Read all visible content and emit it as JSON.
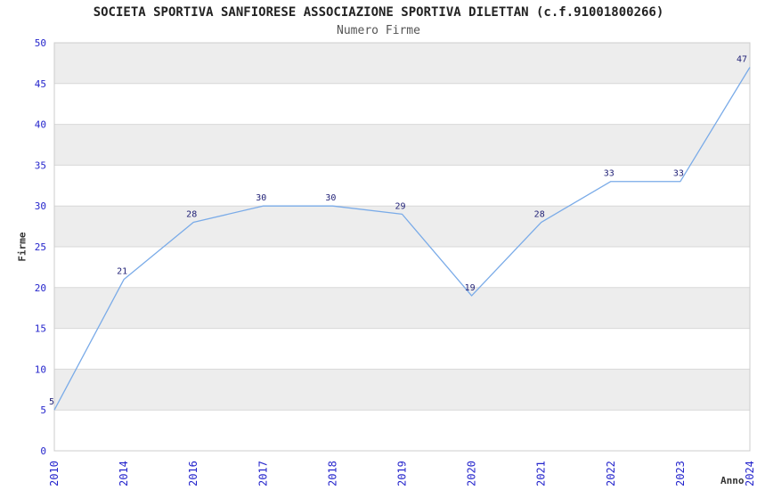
{
  "chart_data": {
    "type": "line",
    "title": "SOCIETA SPORTIVA SANFIORESE ASSOCIAZIONE SPORTIVA DILETTAN (c.f.91001800266)",
    "subtitle": "Numero Firme",
    "xlabel": "Anno",
    "ylabel": "Firme",
    "categories": [
      "2010",
      "2014",
      "2016",
      "2017",
      "2018",
      "2019",
      "2020",
      "2021",
      "2022",
      "2023",
      "2024"
    ],
    "values": [
      5,
      21,
      28,
      30,
      30,
      29,
      19,
      28,
      33,
      33,
      47
    ],
    "ylim": [
      0,
      50
    ],
    "ytick_step": 5,
    "yticks": [
      0,
      5,
      10,
      15,
      20,
      25,
      30,
      35,
      40,
      45,
      50
    ],
    "grid": true,
    "legend": "none",
    "colors": {
      "line": "#7aabe8",
      "band_fill": "#ededed",
      "gridline": "#d8d8d8",
      "plot_border": "#cccccc",
      "tick_label": "#2525cc",
      "data_label": "#222277",
      "title": "#222222",
      "subtitle": "#555555",
      "axis_label": "#333333"
    }
  }
}
